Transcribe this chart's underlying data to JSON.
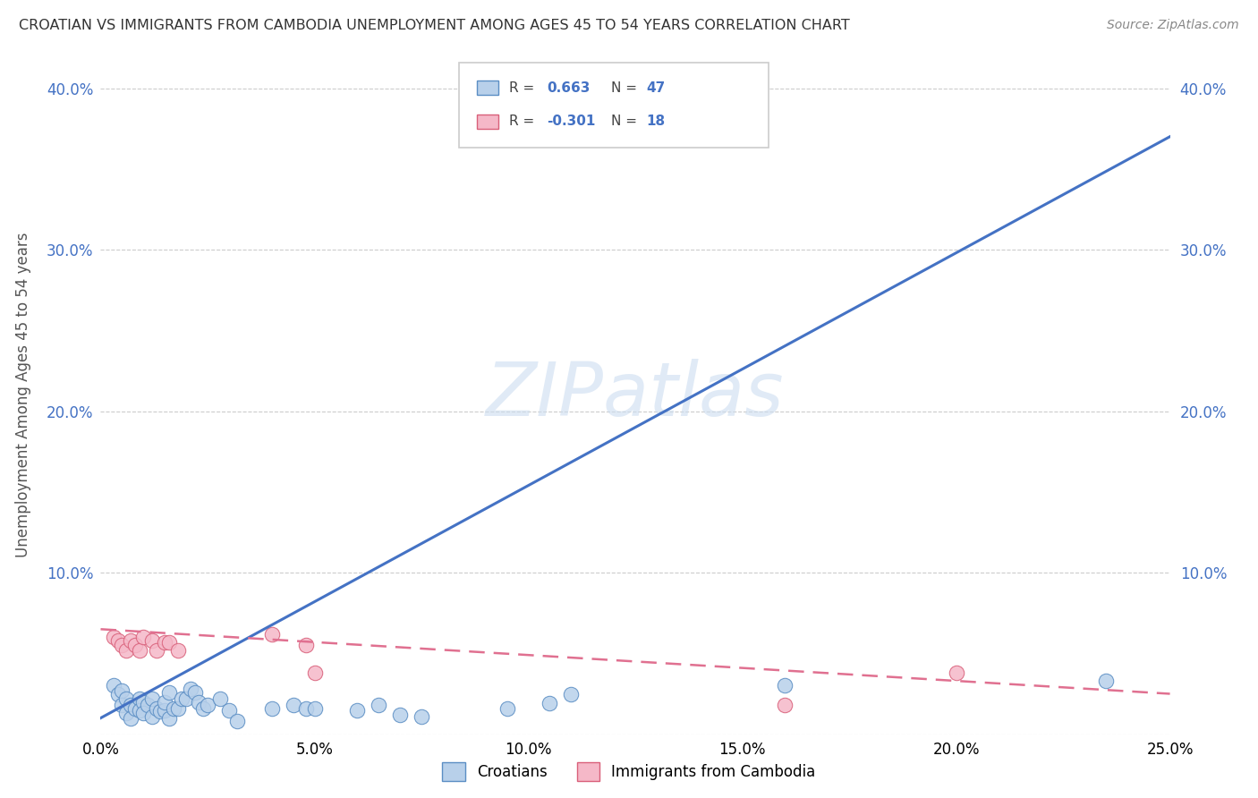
{
  "title": "CROATIAN VS IMMIGRANTS FROM CAMBODIA UNEMPLOYMENT AMONG AGES 45 TO 54 YEARS CORRELATION CHART",
  "source": "Source: ZipAtlas.com",
  "ylabel": "Unemployment Among Ages 45 to 54 years",
  "watermark": "ZIPatlas",
  "xlim": [
    0.0,
    0.25
  ],
  "ylim": [
    0.0,
    0.42
  ],
  "xticks": [
    0.0,
    0.05,
    0.1,
    0.15,
    0.2,
    0.25
  ],
  "yticks": [
    0.0,
    0.1,
    0.2,
    0.3,
    0.4
  ],
  "legend_labels": [
    "Croatians",
    "Immigrants from Cambodia"
  ],
  "blue_face": "#b8d0ea",
  "blue_edge": "#5b8ec4",
  "pink_face": "#f5b8c8",
  "pink_edge": "#d9607a",
  "blue_line": "#4472c4",
  "pink_line": "#e07090",
  "blue_scatter": [
    [
      0.003,
      0.03
    ],
    [
      0.004,
      0.025
    ],
    [
      0.005,
      0.027
    ],
    [
      0.005,
      0.02
    ],
    [
      0.006,
      0.022
    ],
    [
      0.006,
      0.015
    ],
    [
      0.007,
      0.018
    ],
    [
      0.007,
      0.012
    ],
    [
      0.008,
      0.017
    ],
    [
      0.008,
      0.01
    ],
    [
      0.009,
      0.022
    ],
    [
      0.009,
      0.016
    ],
    [
      0.01,
      0.02
    ],
    [
      0.01,
      0.014
    ],
    [
      0.011,
      0.018
    ],
    [
      0.012,
      0.022
    ],
    [
      0.012,
      0.012
    ],
    [
      0.013,
      0.016
    ],
    [
      0.014,
      0.014
    ],
    [
      0.014,
      0.025
    ],
    [
      0.015,
      0.015
    ],
    [
      0.015,
      0.02
    ],
    [
      0.016,
      0.016
    ],
    [
      0.016,
      0.01
    ],
    [
      0.017,
      0.016
    ],
    [
      0.018,
      0.016
    ],
    [
      0.019,
      0.022
    ],
    [
      0.02,
      0.022
    ],
    [
      0.021,
      0.028
    ],
    [
      0.022,
      0.026
    ],
    [
      0.023,
      0.02
    ],
    [
      0.024,
      0.016
    ],
    [
      0.025,
      0.018
    ],
    [
      0.028,
      0.022
    ],
    [
      0.03,
      0.014
    ],
    [
      0.032,
      0.008
    ],
    [
      0.04,
      0.016
    ],
    [
      0.045,
      0.018
    ],
    [
      0.048,
      0.016
    ],
    [
      0.05,
      0.016
    ],
    [
      0.06,
      0.015
    ],
    [
      0.065,
      0.018
    ],
    [
      0.07,
      0.012
    ],
    [
      0.075,
      0.011
    ],
    [
      0.095,
      0.016
    ],
    [
      0.16,
      0.03
    ],
    [
      0.235,
      0.033
    ]
  ],
  "cambodia_scatter": [
    [
      0.003,
      0.06
    ],
    [
      0.004,
      0.058
    ],
    [
      0.005,
      0.055
    ],
    [
      0.006,
      0.05
    ],
    [
      0.007,
      0.058
    ],
    [
      0.008,
      0.055
    ],
    [
      0.009,
      0.052
    ],
    [
      0.01,
      0.06
    ],
    [
      0.012,
      0.058
    ],
    [
      0.013,
      0.052
    ],
    [
      0.015,
      0.057
    ],
    [
      0.016,
      0.057
    ],
    [
      0.018,
      0.052
    ],
    [
      0.04,
      0.062
    ],
    [
      0.048,
      0.055
    ],
    [
      0.05,
      0.038
    ],
    [
      0.16,
      0.018
    ],
    [
      0.2,
      0.038
    ]
  ]
}
